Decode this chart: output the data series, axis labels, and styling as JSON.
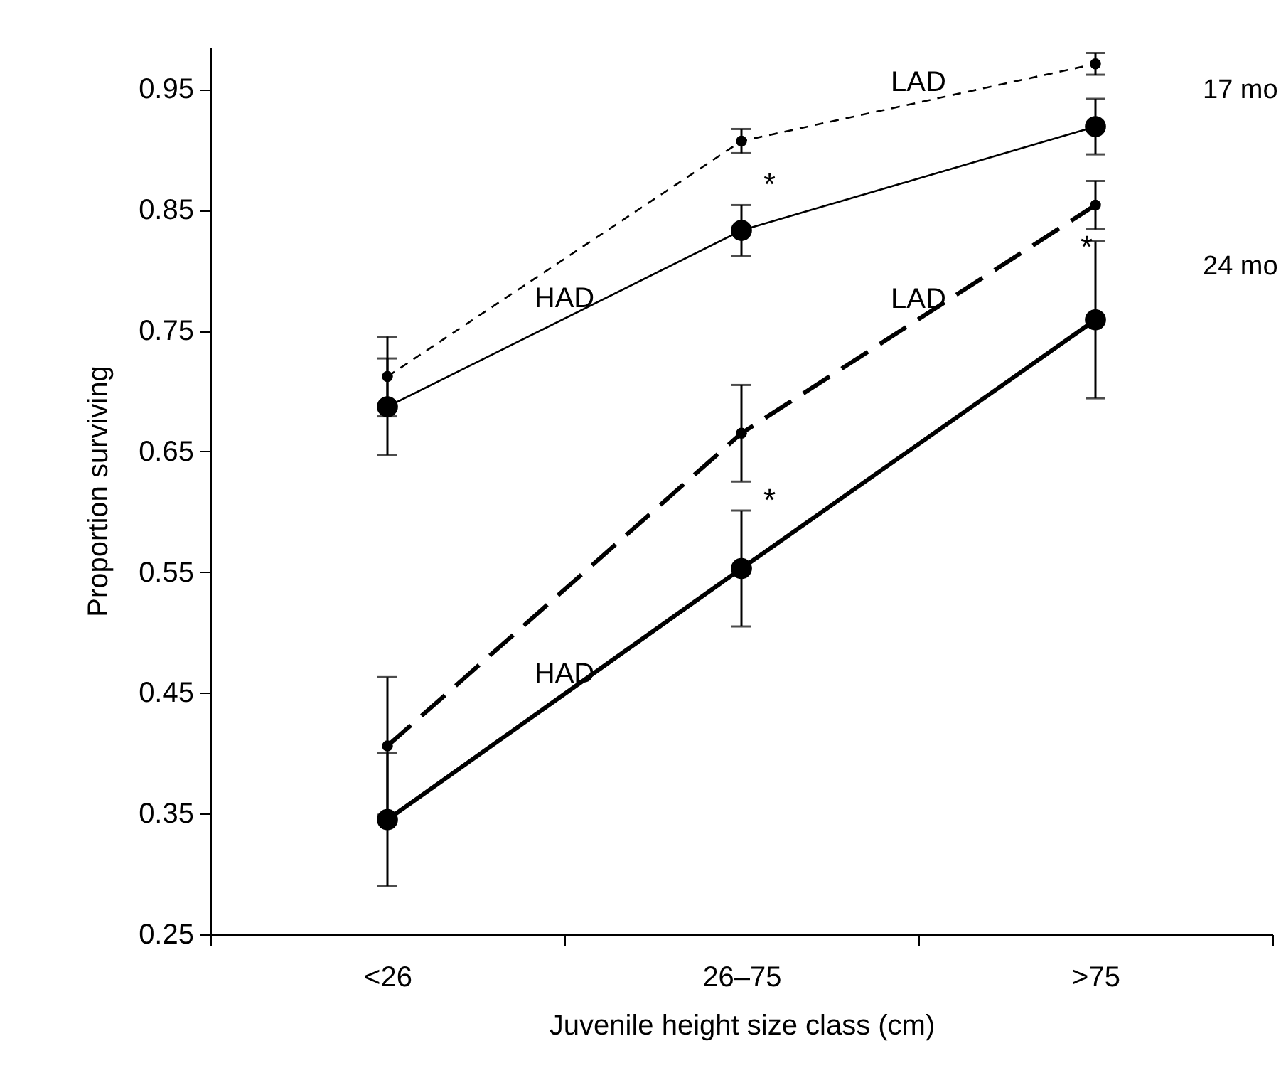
{
  "chart_data": {
    "type": "line",
    "xlabel": "Juvenile height size class (cm)",
    "ylabel": "Proportion surviving",
    "categories": [
      "<26",
      "26–75",
      ">75"
    ],
    "series": [
      {
        "name": "LAD",
        "color": "#000000",
        "line_style": "dashed",
        "values": [
          0.712,
          0.907,
          0.971
        ],
        "errors": [
          0.033,
          0.01,
          0.009
        ]
      },
      {
        "name": "HAD",
        "color": "#000000",
        "line_style": "solid",
        "values": [
          0.687,
          0.833,
          0.919
        ],
        "errors": [
          0.04,
          0.021,
          0.023
        ]
      },
      {
        "name": "LAD",
        "color": "#000000",
        "line_style": "dashed",
        "values": [
          0.406,
          0.665,
          0.854
        ],
        "errors": [
          0.057,
          0.04,
          0.02
        ]
      },
      {
        "name": "HAD",
        "color": "#000000",
        "line_style": "solid",
        "values": [
          0.345,
          0.553,
          0.759
        ],
        "errors": [
          0.055,
          0.048,
          0.065
        ]
      }
    ],
    "ylim": [
      0.25,
      0.985
    ],
    "yticks": [
      0.25,
      0.35,
      0.45,
      0.55,
      0.65,
      0.75,
      0.85,
      0.95
    ],
    "grid": false,
    "legend": false,
    "marker": "circle",
    "annotations": [
      "17 mo",
      "24 mo",
      "*",
      "*",
      "*"
    ]
  }
}
